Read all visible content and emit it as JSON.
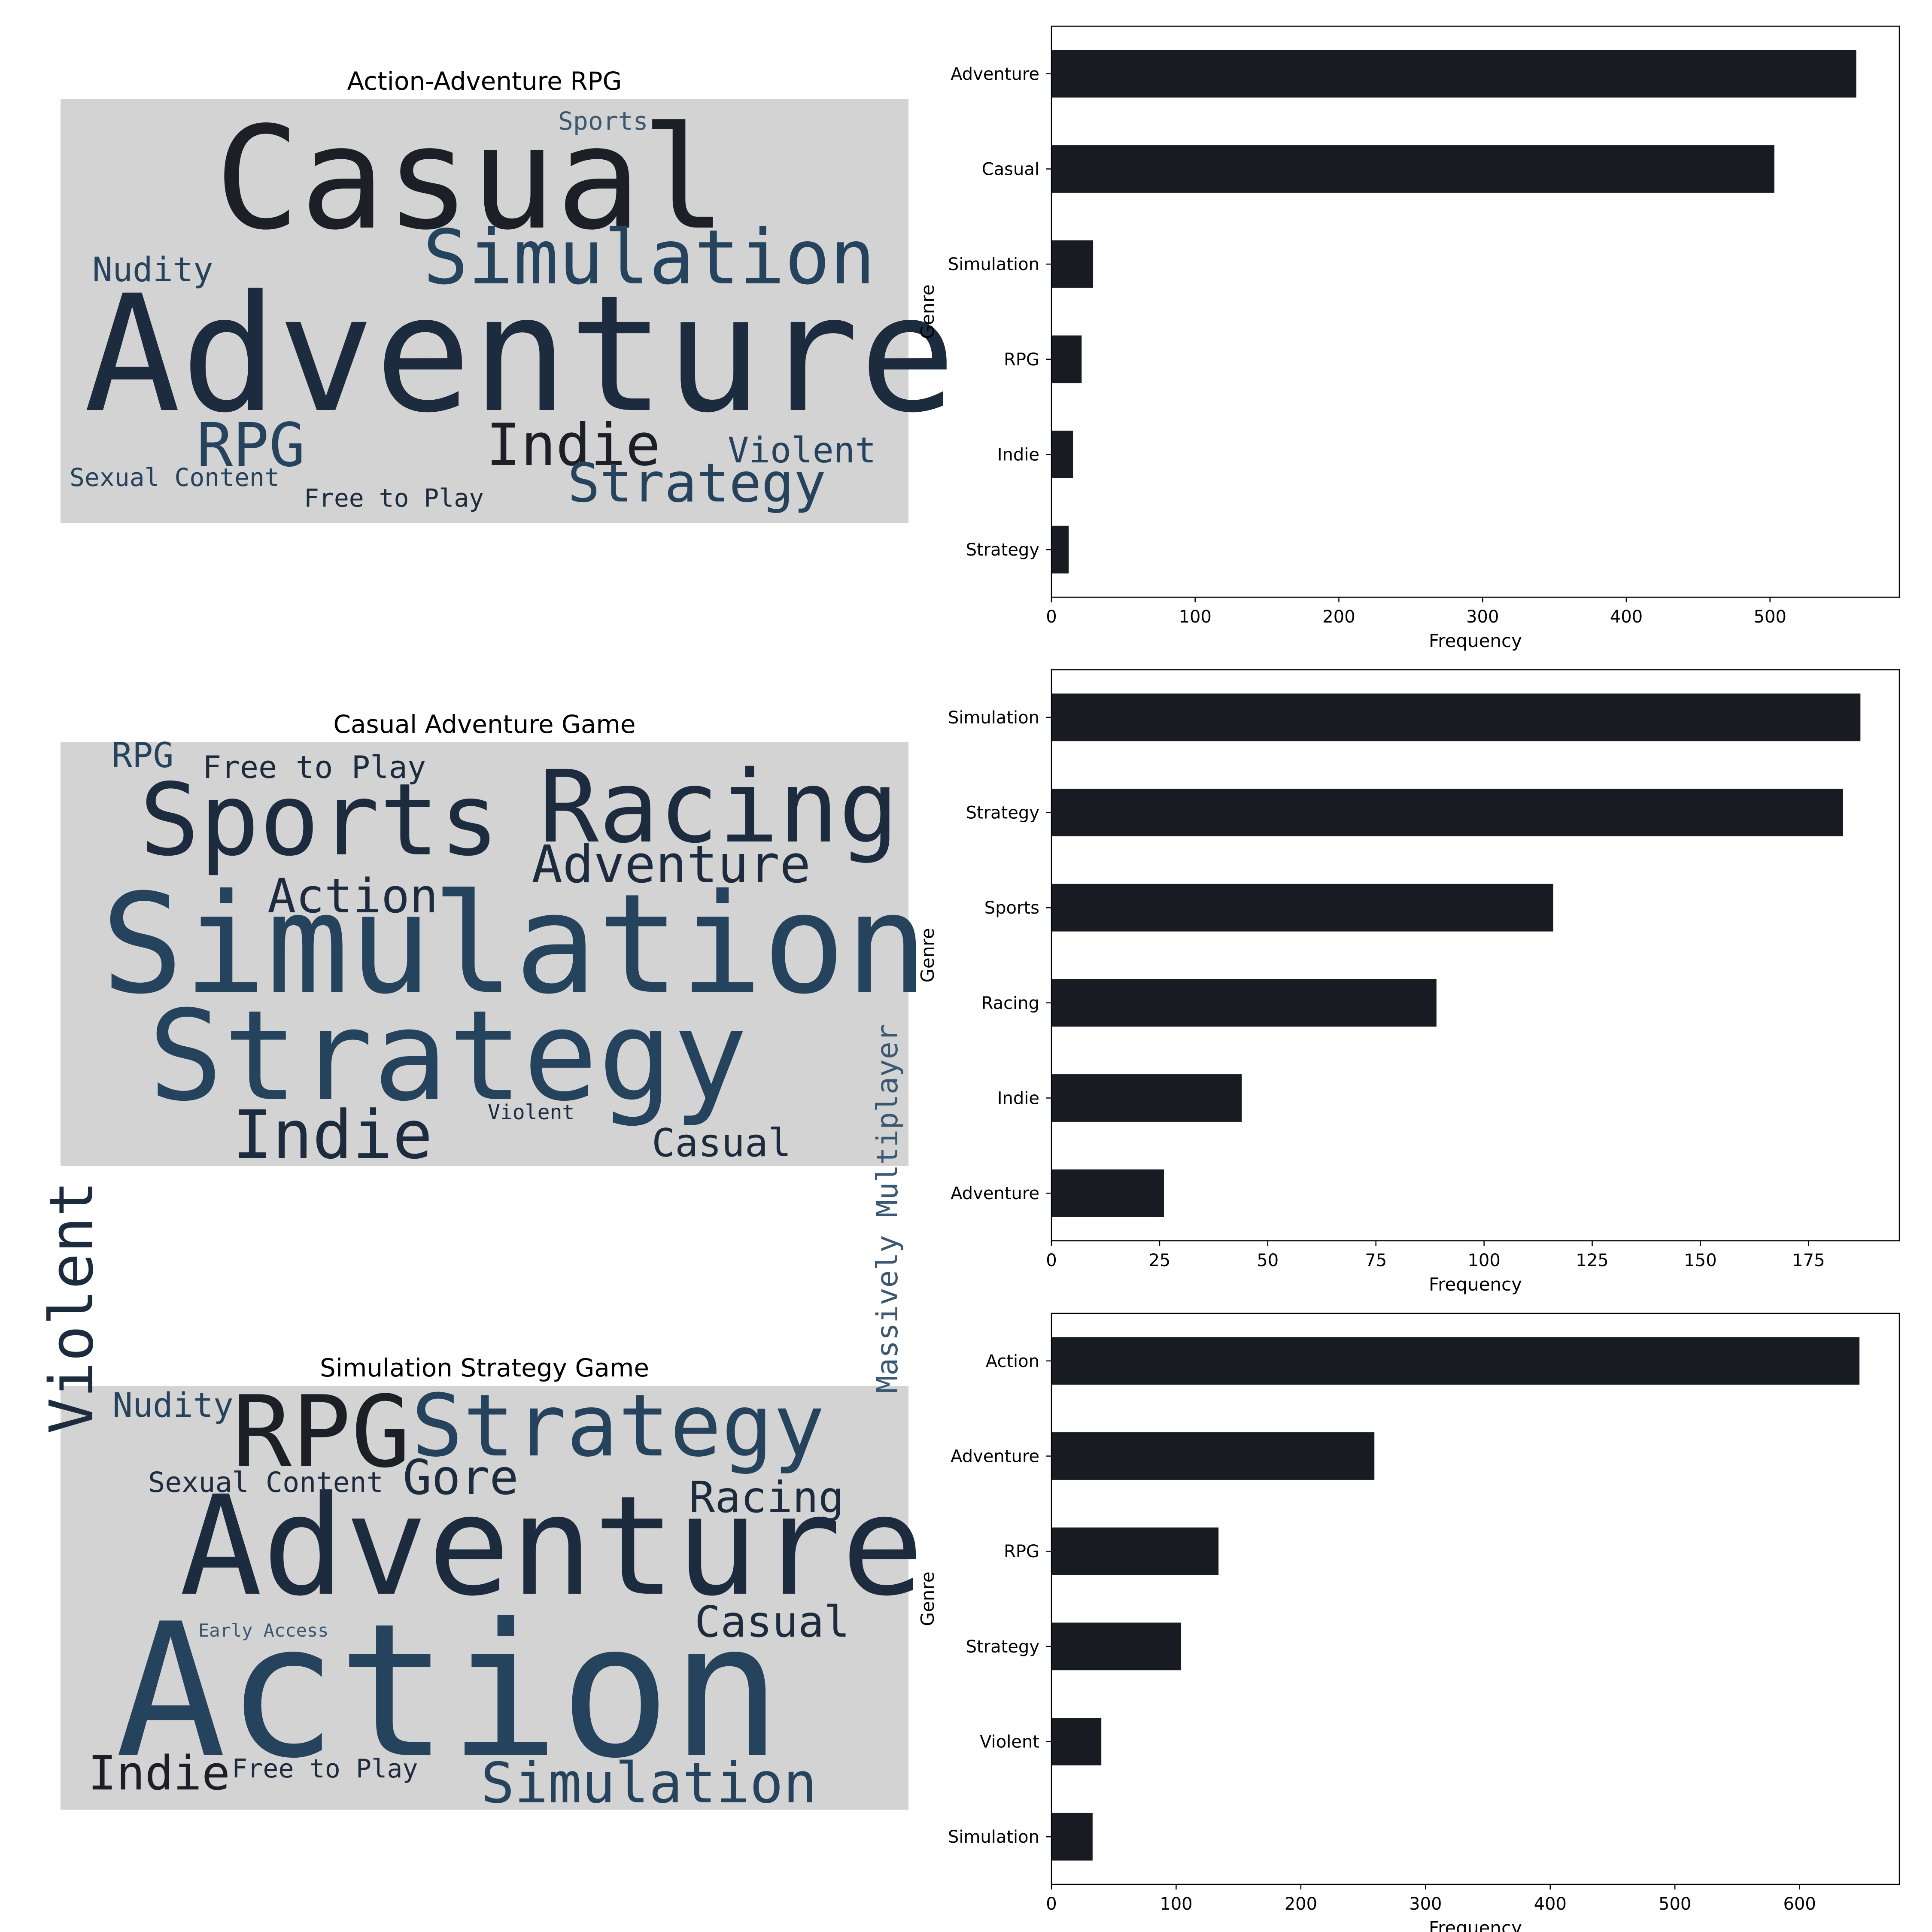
{
  "colors": {
    "background": "#ffffff",
    "wordcloud_bg": "#d3d3d3",
    "bar": "#181b22",
    "axis": "#000000",
    "word_dark": "#1c1f26",
    "word_navy": "#1c2b3e",
    "word_slate": "#26435d",
    "word_light": "#3b5873"
  },
  "chart_data": [
    {
      "type": "wordcloud",
      "title": "Action-Adventure RPG",
      "words": [
        "Casual",
        "Sports",
        "Simulation",
        "Nudity",
        "Adventure",
        "RPG",
        "Indie",
        "Violent",
        "Sexual Content",
        "Free to Play",
        "Strategy"
      ]
    },
    {
      "type": "bar",
      "orientation": "horizontal",
      "categories": [
        "Adventure",
        "Casual",
        "Simulation",
        "RPG",
        "Indie",
        "Strategy"
      ],
      "values": [
        560,
        503,
        29,
        21,
        15,
        12
      ],
      "xlabel": "Frequency",
      "ylabel": "Genre",
      "xlim": [
        0,
        590
      ],
      "xticks": [
        0,
        100,
        200,
        300,
        400,
        500
      ]
    },
    {
      "type": "wordcloud",
      "title": "Casual Adventure Game",
      "words": [
        "RPG",
        "Free to Play",
        "Sports",
        "Racing",
        "Adventure",
        "Action",
        "Simulation",
        "Strategy",
        "Indie",
        "Violent",
        "Casual"
      ]
    },
    {
      "type": "bar",
      "orientation": "horizontal",
      "categories": [
        "Simulation",
        "Strategy",
        "Sports",
        "Racing",
        "Indie",
        "Adventure"
      ],
      "values": [
        187,
        183,
        116,
        89,
        44,
        26
      ],
      "xlabel": "Frequency",
      "ylabel": "Genre",
      "xlim": [
        0,
        196
      ],
      "xticks": [
        0,
        25,
        50,
        75,
        100,
        125,
        150,
        175
      ]
    },
    {
      "type": "wordcloud",
      "title": "Simulation Strategy Game",
      "words": [
        "Nudity",
        "RPG",
        "Strategy",
        "Massively Multiplayer",
        "Violent",
        "Sexual Content",
        "Gore",
        "Racing",
        "Adventure",
        "Casual",
        "Early Access",
        "Action",
        "Indie",
        "Free to Play",
        "Simulation"
      ]
    },
    {
      "type": "bar",
      "orientation": "horizontal",
      "categories": [
        "Action",
        "Adventure",
        "RPG",
        "Strategy",
        "Violent",
        "Simulation"
      ],
      "values": [
        648,
        259,
        134,
        104,
        40,
        33
      ],
      "xlabel": "Frequency",
      "ylabel": "Genre",
      "xlim": [
        0,
        680
      ],
      "xticks": [
        0,
        100,
        200,
        300,
        400,
        500,
        600
      ]
    }
  ]
}
